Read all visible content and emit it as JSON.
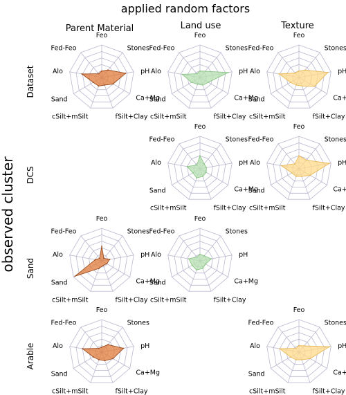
{
  "figure": {
    "title": "applied random factors",
    "y_title": "observed cluster",
    "columns": [
      "Parent Material",
      "Land use",
      "Texture"
    ],
    "rows": [
      "Dataset",
      "DCS",
      "Sand",
      "Arable"
    ]
  },
  "axes": [
    "Feo",
    "Stones",
    "pH",
    "Ca+Mg",
    "fSilt+Clay",
    "cSilt+mSilt",
    "Sand",
    "Alo",
    "Fed-Feo"
  ],
  "colors": {
    "Parent Material": {
      "fill": "#e07b39",
      "stroke": "#9a4a1c",
      "opacity": 0.75
    },
    "Land use": {
      "fill": "#b6e0b0",
      "stroke": "#8cc487",
      "opacity": 0.75
    },
    "Texture": {
      "fill": "#ffd98a",
      "stroke": "#e8b95a",
      "opacity": 0.75
    },
    "grid": "#b9b9cf"
  },
  "chart_data": [
    {
      "type": "radar",
      "row": "Dataset",
      "column": "Parent Material",
      "axes": [
        "Feo",
        "Stones",
        "pH",
        "Ca+Mg",
        "fSilt+Clay",
        "cSilt+mSilt",
        "Sand",
        "Alo",
        "Fed-Feo"
      ],
      "values": [
        0.2,
        0.3,
        0.75,
        0.4,
        0.25,
        0.28,
        0.3,
        0.62,
        0.15
      ]
    },
    {
      "type": "radar",
      "row": "Dataset",
      "column": "Land use",
      "axes": [
        "Feo",
        "Stones",
        "pH",
        "Ca+Mg",
        "fSilt+Clay",
        "cSilt+mSilt",
        "Sand",
        "Alo",
        "Fed-Feo"
      ],
      "values": [
        0.2,
        0.25,
        0.88,
        0.3,
        0.25,
        0.22,
        0.3,
        0.55,
        0.15
      ]
    },
    {
      "type": "radar",
      "row": "Dataset",
      "column": "Texture",
      "axes": [
        "Feo",
        "Stones",
        "pH",
        "Ca+Mg",
        "fSilt+Clay",
        "cSilt+mSilt",
        "Sand",
        "Alo",
        "Fed-Feo"
      ],
      "values": [
        0.2,
        0.3,
        0.9,
        0.55,
        0.28,
        0.25,
        0.3,
        0.62,
        0.18
      ]
    },
    {
      "type": "radar",
      "row": "DCS",
      "column": "Land use",
      "axes": [
        "Feo",
        "Stones",
        "pH",
        "Ca+Mg",
        "fSilt+Clay",
        "cSilt+mSilt",
        "Sand",
        "Alo",
        "Fed-Feo"
      ],
      "values": [
        0.4,
        0.2,
        0.2,
        0.22,
        0.25,
        0.3,
        0.25,
        0.4,
        0.15
      ]
    },
    {
      "type": "radar",
      "row": "DCS",
      "column": "Texture",
      "axes": [
        "Feo",
        "Stones",
        "pH",
        "Ca+Mg",
        "fSilt+Clay",
        "cSilt+mSilt",
        "Sand",
        "Alo",
        "Fed-Feo"
      ],
      "values": [
        0.4,
        0.35,
        0.95,
        0.4,
        0.25,
        0.25,
        0.25,
        0.55,
        0.2
      ]
    },
    {
      "type": "radar",
      "row": "Sand",
      "column": "Parent Material",
      "axes": [
        "Feo",
        "Stones",
        "pH",
        "Ca+Mg",
        "fSilt+Clay",
        "cSilt+mSilt",
        "Sand",
        "Alo",
        "Fed-Feo"
      ],
      "values": [
        0.45,
        0.1,
        0.25,
        0.18,
        0.15,
        0.25,
        0.95,
        0.2,
        0.1
      ]
    },
    {
      "type": "radar",
      "row": "Sand",
      "column": "Land use",
      "axes": [
        "Feo",
        "Stones",
        "pH",
        "Ca+Mg",
        "fSilt+Clay",
        "cSilt+mSilt",
        "Sand",
        "Alo",
        "Fed-Feo"
      ],
      "values": [
        0.2,
        0.2,
        0.35,
        0.2,
        0.25,
        0.3,
        0.28,
        0.35,
        0.15
      ]
    },
    {
      "type": "radar",
      "row": "Arable",
      "column": "Parent Material",
      "axes": [
        "Feo",
        "Stones",
        "pH",
        "Ca+Mg",
        "fSilt+Clay",
        "cSilt+mSilt",
        "Sand",
        "Alo",
        "Fed-Feo"
      ],
      "values": [
        0.15,
        0.3,
        0.68,
        0.4,
        0.28,
        0.25,
        0.3,
        0.6,
        0.15
      ]
    },
    {
      "type": "radar",
      "row": "Arable",
      "column": "Texture",
      "axes": [
        "Feo",
        "Stones",
        "pH",
        "Ca+Mg",
        "fSilt+Clay",
        "cSilt+mSilt",
        "Sand",
        "Alo",
        "Fed-Feo"
      ],
      "values": [
        0.2,
        0.25,
        0.95,
        0.4,
        0.25,
        0.25,
        0.3,
        0.6,
        0.15
      ]
    }
  ]
}
